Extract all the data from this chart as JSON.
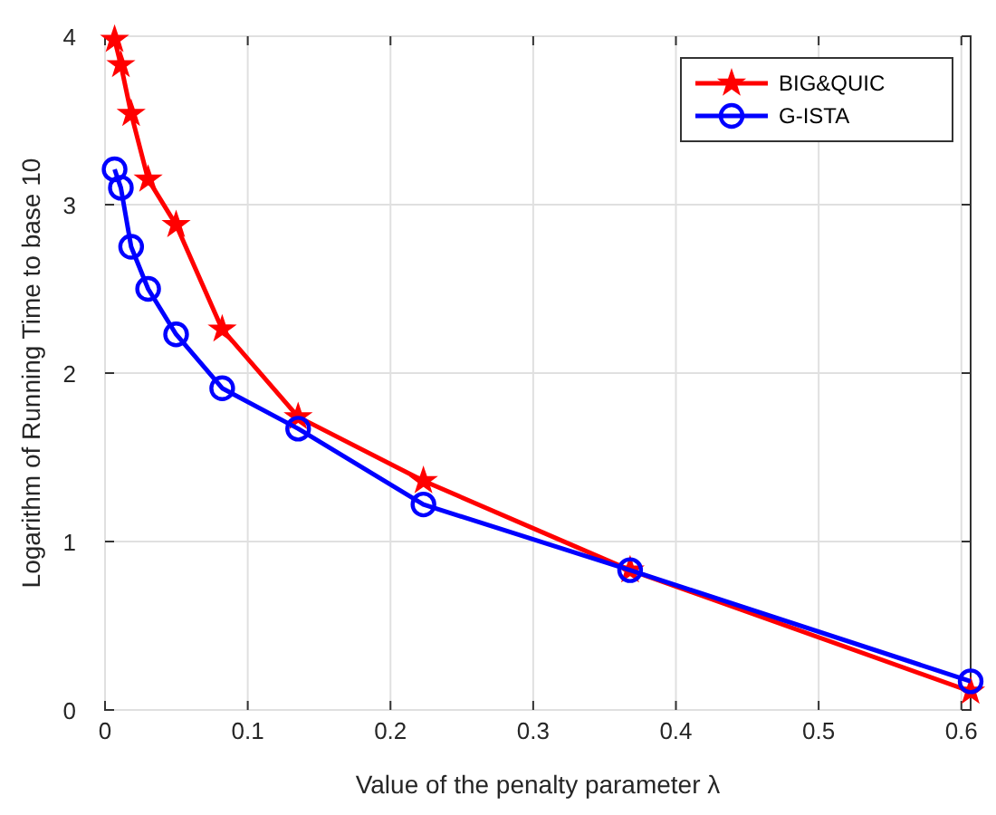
{
  "chart_data": {
    "type": "line",
    "xlabel": "Value of the penalty parameter λ",
    "ylabel": "Logarithm of Running Time to base 10",
    "x": [
      0.0067,
      0.0111,
      0.0183,
      0.0302,
      0.0498,
      0.0821,
      0.1353,
      0.2231,
      0.3679,
      0.6065
    ],
    "series": [
      {
        "name": "BIG&QUIC",
        "color": "#ff0000",
        "marker": "star",
        "values": [
          3.98,
          3.83,
          3.54,
          3.15,
          2.88,
          2.26,
          1.74,
          1.36,
          0.83,
          0.11
        ]
      },
      {
        "name": "G-ISTA",
        "color": "#0000ff",
        "marker": "circle",
        "values": [
          3.21,
          3.1,
          2.75,
          2.5,
          2.23,
          1.91,
          1.67,
          1.22,
          0.83,
          0.17
        ]
      }
    ],
    "xlim": [
      0,
      0.6065
    ],
    "xticks": [
      0,
      0.1,
      0.2,
      0.3,
      0.4,
      0.5,
      0.6
    ],
    "ylim": [
      0,
      4
    ],
    "yticks": [
      0,
      1,
      2,
      3,
      4
    ],
    "grid": true,
    "legend": "top right",
    "line_style": "solid"
  }
}
